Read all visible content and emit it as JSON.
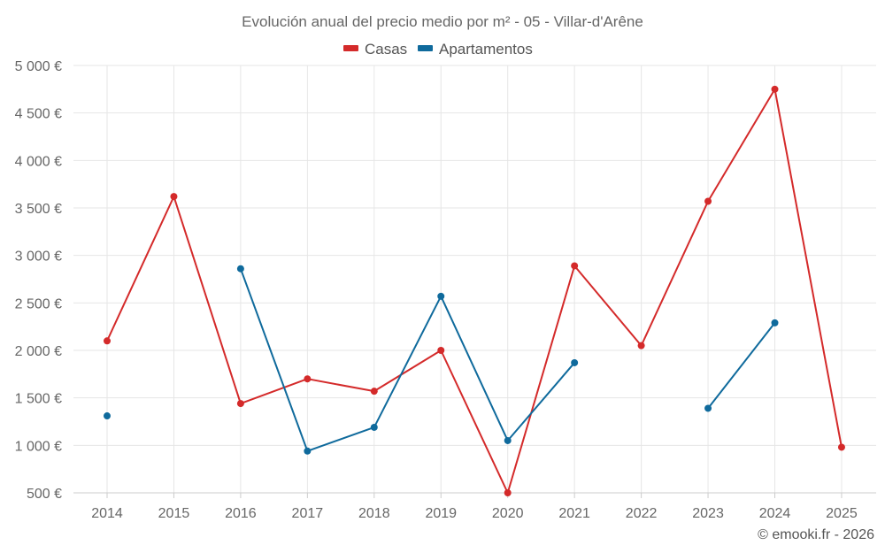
{
  "chart_data": {
    "type": "line",
    "title": "Evolución anual del precio medio por m² - 05 - Villar-d'Arêne",
    "categories": [
      "2014",
      "2015",
      "2016",
      "2017",
      "2018",
      "2019",
      "2020",
      "2021",
      "2022",
      "2023",
      "2024",
      "2025"
    ],
    "yticks": [
      "500 €",
      "1 000 €",
      "1 500 €",
      "2 000 €",
      "2 500 €",
      "3 000 €",
      "3 500 €",
      "4 000 €",
      "4 500 €",
      "5 000 €"
    ],
    "ylim": [
      500,
      5000
    ],
    "grid": true,
    "legend_position": "top-center",
    "series": [
      {
        "name": "Casas",
        "color": "#d42a2a",
        "values": [
          2100,
          3620,
          1440,
          1700,
          1570,
          2000,
          500,
          2890,
          2050,
          3570,
          4750,
          980
        ]
      },
      {
        "name": "Apartamentos",
        "color": "#0f6a9c",
        "values": [
          1310,
          null,
          2860,
          940,
          1190,
          2570,
          1050,
          1870,
          null,
          1390,
          2290,
          null
        ]
      }
    ],
    "credit": "© emooki.fr - 2026"
  }
}
